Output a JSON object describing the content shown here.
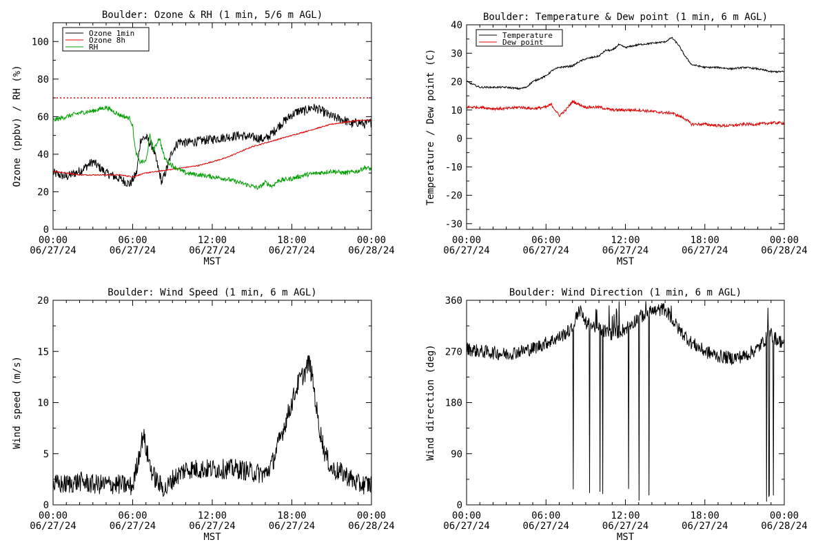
{
  "chart_data": [
    {
      "id": "ozone",
      "type": "line",
      "title": "Boulder: Ozone & RH (1 min, 5/6 m AGL)",
      "xlabel": "MST",
      "ylabel": "Ozone (ppbv) / RH (%)",
      "xlim": [
        0,
        24
      ],
      "ylim": [
        0,
        110
      ],
      "yticks": [
        0,
        20,
        40,
        60,
        80,
        100
      ],
      "xtick_hours": [
        0,
        6,
        12,
        18,
        24
      ],
      "xtick_times": [
        "00:00",
        "06:00",
        "12:00",
        "18:00",
        "00:00"
      ],
      "xtick_dates": [
        "06/27/24",
        "06/27/24",
        "06/27/24",
        "06/27/24",
        "06/28/24"
      ],
      "legend_position": "top-left",
      "reference_line": {
        "y": 70,
        "color": "#e00000",
        "style": "dotted"
      },
      "series": [
        {
          "name": "Ozone 1min",
          "color": "#000000",
          "noise": 2.5,
          "x": [
            0,
            1,
            2,
            3,
            4,
            5,
            5.8,
            6.3,
            6.6,
            7,
            7.5,
            7.8,
            8.2,
            8.6,
            9,
            9.5,
            10,
            11,
            12,
            13,
            14,
            15,
            16,
            16.5,
            17,
            17.5,
            18,
            18.5,
            19,
            19.5,
            20,
            20.5,
            21,
            21.5,
            22,
            22.5,
            23,
            23.5,
            24
          ],
          "y": [
            30,
            28,
            31,
            36,
            30,
            27,
            24,
            30,
            48,
            49,
            44,
            36,
            25,
            33,
            42,
            47,
            46,
            47,
            48,
            49,
            50,
            49,
            48,
            51,
            55,
            58,
            61,
            63,
            63,
            65,
            64,
            62,
            60,
            59,
            58,
            56,
            57,
            56,
            57
          ]
        },
        {
          "name": "Ozone 8h",
          "color": "#e00000",
          "noise": 0.3,
          "x": [
            0,
            1,
            2,
            3,
            4,
            5,
            6,
            7,
            8,
            9,
            10,
            11,
            12,
            13,
            14,
            15,
            16,
            17,
            18,
            19,
            20,
            21,
            22,
            23,
            24
          ],
          "y": [
            31,
            30,
            29,
            29,
            29,
            29,
            28,
            30,
            31,
            32,
            33,
            34,
            36,
            38,
            41,
            44,
            46,
            48,
            50,
            52,
            54,
            56,
            57,
            58,
            58
          ]
        },
        {
          "name": "RH",
          "color": "#00a000",
          "noise": 1.2,
          "x": [
            0,
            1,
            2,
            3,
            4,
            5,
            5.8,
            6,
            6.2,
            6.5,
            7,
            7.3,
            7.6,
            8,
            8.4,
            8.8,
            9.2,
            10,
            11,
            12,
            13,
            14,
            15,
            15.5,
            16,
            16.5,
            17,
            18,
            19,
            20,
            21,
            22,
            23,
            23.5,
            24
          ],
          "y": [
            58,
            60,
            62,
            63,
            65,
            61,
            59,
            55,
            42,
            36,
            36,
            50,
            42,
            49,
            38,
            35,
            33,
            30,
            29,
            28,
            27,
            25,
            23,
            22,
            25,
            23,
            26,
            27,
            29,
            30,
            31,
            30,
            31,
            33,
            32
          ]
        }
      ]
    },
    {
      "id": "temp",
      "type": "line",
      "title": "Boulder: Temperature & Dew point (1 min, 6 m AGL)",
      "xlabel": "MST",
      "ylabel": "Temperature / Dew point (C)",
      "xlim": [
        0,
        24
      ],
      "ylim": [
        -32,
        40
      ],
      "yticks": [
        -30,
        -20,
        -10,
        0,
        10,
        20,
        30,
        40
      ],
      "xtick_hours": [
        0,
        6,
        12,
        18,
        24
      ],
      "xtick_times": [
        "00:00",
        "06:00",
        "12:00",
        "18:00",
        "00:00"
      ],
      "xtick_dates": [
        "06/27/24",
        "06/27/24",
        "06/27/24",
        "06/27/24",
        "06/28/24"
      ],
      "legend_position": "top-left",
      "series": [
        {
          "name": "Temperature",
          "color": "#000000",
          "noise": 0.3,
          "x": [
            0,
            1,
            2,
            3,
            4,
            4.5,
            5,
            6,
            6.5,
            7,
            8,
            8.5,
            9,
            10,
            10.5,
            11,
            11.5,
            12,
            13,
            14,
            15,
            15.5,
            16,
            16.5,
            17,
            18,
            19,
            20,
            21,
            22,
            23,
            24
          ],
          "y": [
            20,
            18,
            18,
            18,
            17.5,
            18,
            20,
            22,
            24,
            25,
            25.5,
            27,
            28,
            29,
            31,
            31,
            33,
            32,
            33,
            33.5,
            34,
            35.5,
            33,
            29,
            26,
            25,
            25,
            24.5,
            25,
            24.5,
            23.5,
            23.5
          ]
        },
        {
          "name": "Dew point",
          "color": "#e00000",
          "noise": 0.5,
          "x": [
            0,
            1,
            2,
            3,
            4,
            5,
            6,
            6.4,
            6.7,
            7,
            7.5,
            8,
            8.5,
            9,
            10,
            11,
            12,
            13,
            14,
            15,
            15.5,
            16,
            16.5,
            17,
            17.5,
            18,
            19,
            20,
            21,
            22,
            23,
            24
          ],
          "y": [
            11,
            11,
            10.5,
            10.5,
            11,
            10.5,
            11,
            12,
            10,
            8,
            10,
            13,
            12,
            11,
            11,
            10,
            10,
            10,
            9.5,
            9,
            9,
            8,
            7,
            5,
            5,
            5,
            4.5,
            4.5,
            5,
            5,
            5.5,
            5.5
          ]
        }
      ]
    },
    {
      "id": "wspd",
      "type": "line",
      "title": "Boulder: Wind Speed (1 min, 6 m AGL)",
      "xlabel": "MST",
      "ylabel": "Wind speed (m/s)",
      "xlim": [
        0,
        24
      ],
      "ylim": [
        0,
        20
      ],
      "yticks": [
        0,
        5,
        10,
        15,
        20
      ],
      "xtick_hours": [
        0,
        6,
        12,
        18,
        24
      ],
      "xtick_times": [
        "00:00",
        "06:00",
        "12:00",
        "18:00",
        "00:00"
      ],
      "xtick_dates": [
        "06/27/24",
        "06/27/24",
        "06/27/24",
        "06/27/24",
        "06/28/24"
      ],
      "series": [
        {
          "name": "",
          "color": "#000000",
          "noise": 1.0,
          "floor": 0.3,
          "x": [
            0,
            1,
            2,
            3,
            4,
            5,
            6,
            6.5,
            6.8,
            7,
            7.5,
            8,
            8.5,
            9,
            10,
            11,
            12,
            13,
            14,
            15,
            16,
            16.5,
            17,
            17.5,
            18,
            18.5,
            19,
            19.3,
            19.6,
            20,
            20.5,
            21,
            22,
            23,
            24
          ],
          "y": [
            2,
            2,
            2.3,
            2,
            2,
            2,
            1.8,
            5,
            7,
            5.5,
            3,
            2,
            1.5,
            2.5,
            3.5,
            3.5,
            3.5,
            3.5,
            3.5,
            3.2,
            3,
            4,
            6,
            8,
            10,
            12,
            13,
            14,
            12,
            8,
            5,
            3.5,
            3,
            2,
            2
          ]
        }
      ]
    },
    {
      "id": "wdir",
      "type": "line",
      "title": "Boulder: Wind Direction (1 min, 6 m AGL)",
      "xlabel": "MST",
      "ylabel": "Wind direction (deg)",
      "xlim": [
        0,
        24
      ],
      "ylim": [
        0,
        360
      ],
      "yticks": [
        0,
        90,
        180,
        270,
        360
      ],
      "xtick_hours": [
        0,
        6,
        12,
        18,
        24
      ],
      "xtick_times": [
        "00:00",
        "06:00",
        "12:00",
        "18:00",
        "00:00"
      ],
      "xtick_dates": [
        "06/27/24",
        "06/27/24",
        "06/27/24",
        "06/27/24",
        "06/28/24"
      ],
      "series": [
        {
          "name": "",
          "color": "#000000",
          "noise": 12,
          "wrap": true,
          "x": [
            0,
            1,
            2,
            3,
            4,
            5,
            6,
            7,
            8,
            8.5,
            9,
            10,
            11,
            12,
            13,
            14,
            15,
            16,
            17,
            18,
            19,
            20,
            21,
            22,
            22.5,
            23,
            23.5,
            24
          ],
          "y": [
            275,
            270,
            268,
            265,
            270,
            275,
            285,
            295,
            310,
            345,
            320,
            310,
            300,
            310,
            330,
            340,
            345,
            310,
            285,
            270,
            262,
            258,
            262,
            275,
            290,
            300,
            290,
            285
          ]
        }
      ]
    }
  ]
}
